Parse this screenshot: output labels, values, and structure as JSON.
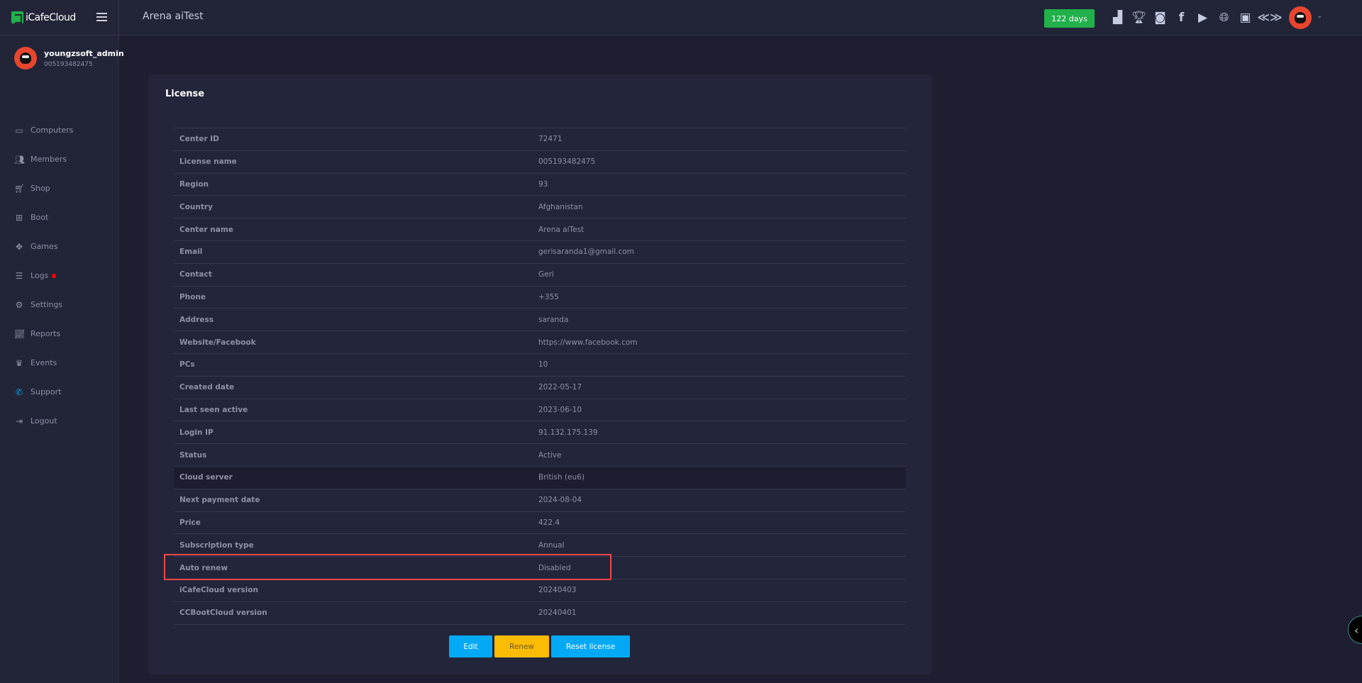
{
  "header": {
    "brand": "iCafeCloud",
    "center_name": "Arena aiTest",
    "days_badge": "122 days",
    "icons": [
      "ranking-icon",
      "trophy-icon",
      "discord-icon",
      "facebook-icon",
      "youtube-icon",
      "globe-icon",
      "icafecloud-icon",
      "ccboot-icon"
    ]
  },
  "user": {
    "name": "youngzsoft_admin",
    "id": "005193482475"
  },
  "sidebar": {
    "items": [
      {
        "label": "Computers",
        "icon": "monitor-icon"
      },
      {
        "label": "Members",
        "icon": "members-icon"
      },
      {
        "label": "Shop",
        "icon": "cart-icon"
      },
      {
        "label": "Boot",
        "icon": "windows-icon"
      },
      {
        "label": "Games",
        "icon": "gamepad-icon"
      },
      {
        "label": "Logs",
        "icon": "list-icon"
      },
      {
        "label": "Settings",
        "icon": "gear-icon"
      },
      {
        "label": "Reports",
        "icon": "chart-icon"
      },
      {
        "label": "Events",
        "icon": "crown-icon"
      },
      {
        "label": "Support",
        "icon": "phone-icon"
      },
      {
        "label": "Logout",
        "icon": "logout-icon"
      }
    ]
  },
  "license": {
    "title": "License",
    "rows": [
      {
        "k": "Center ID",
        "v": "72471"
      },
      {
        "k": "License name",
        "v": "005193482475"
      },
      {
        "k": "Region",
        "v": "93"
      },
      {
        "k": "Country",
        "v": "Afghanistan"
      },
      {
        "k": "Center name",
        "v": "Arena aiTest"
      },
      {
        "k": "Email",
        "v": "gerisaranda1@gmail.com"
      },
      {
        "k": "Contact",
        "v": "Geri"
      },
      {
        "k": "Phone",
        "v": "+355"
      },
      {
        "k": "Address",
        "v": "saranda"
      },
      {
        "k": "Website/Facebook",
        "v": "https://www.facebook.com"
      },
      {
        "k": "PCs",
        "v": "10"
      },
      {
        "k": "Created date",
        "v": "2022-05-17"
      },
      {
        "k": "Last seen active",
        "v": "2023-06-10"
      },
      {
        "k": "Login IP",
        "v": "91.132.175.139"
      },
      {
        "k": "Status",
        "v": "Active"
      },
      {
        "k": "Cloud server",
        "v": "British (eu6)"
      },
      {
        "k": "Next payment date",
        "v": "2024-08-04"
      },
      {
        "k": "Price",
        "v": "422.4"
      },
      {
        "k": "Subscription type",
        "v": "Annual"
      },
      {
        "k": "Auto renew",
        "v": "Disabled"
      },
      {
        "k": "iCafeCloud version",
        "v": "20240403"
      },
      {
        "k": "CCBootCloud version",
        "v": "20240401"
      }
    ],
    "buttons": {
      "edit": "Edit",
      "renew": "Renew",
      "reset": "Reset license"
    }
  },
  "colors": {
    "accent_blue": "#04a9f5",
    "renew_yellow": "#fcbc04",
    "days_green": "#22b04b",
    "highlight_red": "#f04848"
  }
}
